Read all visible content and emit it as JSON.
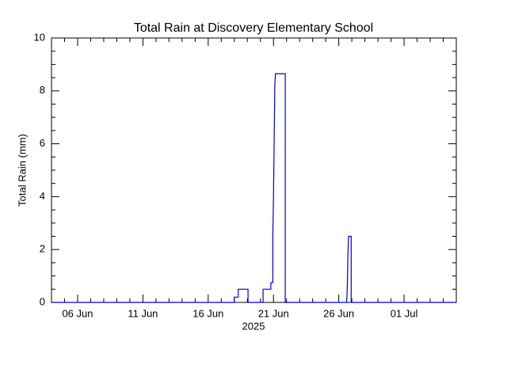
{
  "chart_data": {
    "type": "line",
    "title": "Total Rain at Discovery Elementary School",
    "y_label": "Total Rain (mm)",
    "x_label": "2025",
    "x": [
      4,
      18.0,
      18.0,
      18.3,
      18.3,
      19.05,
      19.05,
      20.2,
      20.2,
      20.8,
      20.8,
      20.95,
      20.95,
      21.0,
      21.05,
      21.1,
      21.15,
      21.9,
      21.9,
      26.6,
      26.65,
      26.7,
      26.75,
      26.95,
      26.95,
      35
    ],
    "series": [
      {
        "name": "Total Rain",
        "color": "#0000cc",
        "values": [
          0,
          0,
          0.2,
          0.2,
          0.5,
          0.5,
          0,
          0,
          0.5,
          0.5,
          0.75,
          0.75,
          2.5,
          4,
          6,
          8.2,
          8.65,
          8.65,
          0,
          0,
          0.5,
          1.8,
          2.5,
          2.5,
          0,
          0
        ]
      }
    ],
    "xlim": [
      4,
      35
    ],
    "xticks": [
      {
        "value": 6,
        "label": "06 Jun"
      },
      {
        "value": 11,
        "label": "11 Jun"
      },
      {
        "value": 16,
        "label": "16 Jun"
      },
      {
        "value": 21,
        "label": "21 Jun"
      },
      {
        "value": 26,
        "label": "26 Jun"
      },
      {
        "value": 31,
        "label": "01 Jul"
      }
    ],
    "xminorticks": [
      5,
      7,
      8,
      9,
      10,
      12,
      13,
      14,
      15,
      17,
      18,
      19,
      20,
      22,
      23,
      24,
      25,
      27,
      28,
      29,
      30,
      32,
      33,
      34
    ],
    "ylim": [
      0,
      10
    ],
    "yticks": [
      0,
      2,
      4,
      6,
      8,
      10
    ],
    "yminorticks": [
      0.5,
      1,
      1.5,
      2.5,
      3,
      3.5,
      4.5,
      5,
      5.5,
      6.5,
      7,
      7.5,
      8.5,
      9,
      9.5
    ],
    "grid": false
  }
}
